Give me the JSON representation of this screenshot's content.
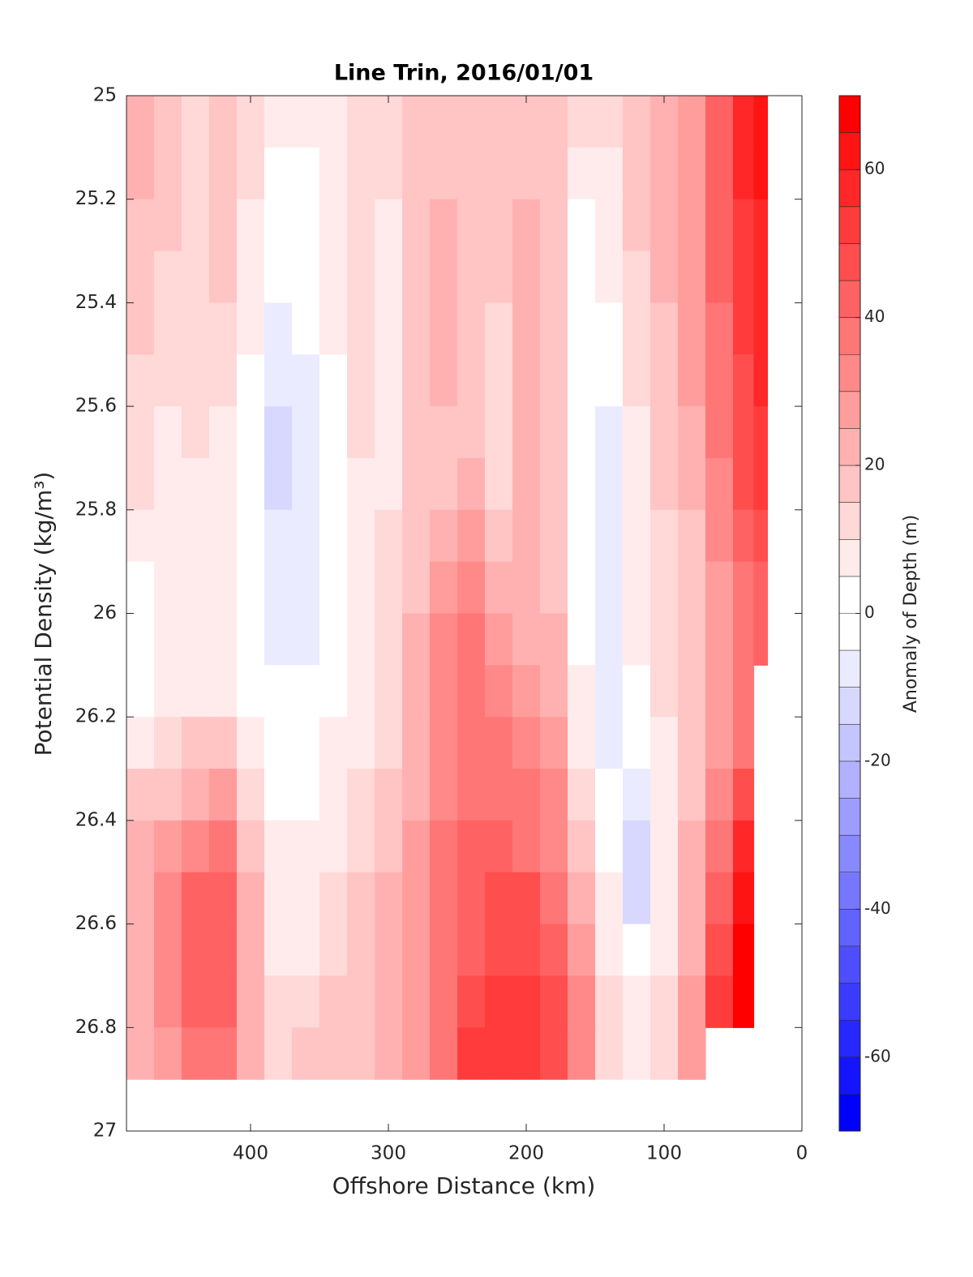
{
  "chart_data": {
    "type": "contourf",
    "title": "Line Trin, 2016/01/01",
    "xlabel": "Offshore Distance (km)",
    "ylabel": "Potential Density (kg/m³)",
    "colorbar_label": "Anomaly of Depth (m)",
    "xlim": [
      490,
      0
    ],
    "ylim": [
      25,
      27
    ],
    "xticks": [
      400,
      300,
      200,
      100,
      0
    ],
    "yticks": [
      25,
      25.2,
      25.4,
      25.6,
      25.8,
      26,
      26.2,
      26.4,
      26.6,
      26.8,
      27
    ],
    "clim": [
      -70,
      70
    ],
    "level_step": 5,
    "cticks": [
      -60,
      -40,
      -20,
      0,
      20,
      40,
      60
    ],
    "color_low": "#0000ff",
    "color_high": "#ff0000",
    "x": [
      480,
      460,
      440,
      420,
      400,
      380,
      360,
      340,
      320,
      300,
      280,
      260,
      240,
      220,
      200,
      180,
      160,
      140,
      120,
      100,
      80,
      60,
      40,
      30
    ],
    "y": [
      25.05,
      25.15,
      25.25,
      25.35,
      25.45,
      25.55,
      25.65,
      25.75,
      25.85,
      25.95,
      26.05,
      26.15,
      26.25,
      26.35,
      26.45,
      26.55,
      26.65,
      26.75,
      26.85
    ],
    "z": [
      [
        20,
        15,
        10,
        15,
        10,
        5,
        5,
        5,
        10,
        10,
        15,
        15,
        15,
        15,
        15,
        15,
        10,
        10,
        15,
        20,
        25,
        40,
        55,
        60
      ],
      [
        20,
        15,
        10,
        15,
        10,
        0,
        0,
        5,
        10,
        10,
        15,
        15,
        15,
        15,
        15,
        15,
        5,
        5,
        15,
        20,
        25,
        40,
        55,
        60
      ],
      [
        15,
        15,
        10,
        15,
        5,
        0,
        0,
        5,
        10,
        5,
        15,
        20,
        15,
        15,
        20,
        15,
        0,
        5,
        15,
        20,
        25,
        40,
        50,
        55
      ],
      [
        15,
        10,
        10,
        15,
        5,
        0,
        0,
        5,
        10,
        5,
        15,
        20,
        15,
        15,
        20,
        15,
        0,
        5,
        10,
        20,
        25,
        40,
        50,
        55
      ],
      [
        15,
        10,
        10,
        10,
        5,
        -5,
        0,
        5,
        10,
        5,
        15,
        20,
        15,
        10,
        20,
        15,
        0,
        0,
        10,
        15,
        25,
        35,
        50,
        55
      ],
      [
        10,
        10,
        10,
        10,
        0,
        -5,
        -5,
        0,
        10,
        5,
        15,
        20,
        15,
        10,
        20,
        15,
        0,
        0,
        10,
        15,
        25,
        35,
        45,
        55
      ],
      [
        10,
        5,
        10,
        5,
        0,
        -10,
        -5,
        0,
        10,
        5,
        15,
        15,
        15,
        10,
        20,
        15,
        0,
        -5,
        5,
        15,
        20,
        35,
        45,
        50
      ],
      [
        10,
        5,
        5,
        5,
        0,
        -10,
        -5,
        0,
        5,
        5,
        15,
        15,
        20,
        10,
        20,
        15,
        0,
        -5,
        5,
        15,
        20,
        30,
        45,
        50
      ],
      [
        5,
        5,
        5,
        5,
        0,
        -5,
        -5,
        0,
        5,
        10,
        15,
        20,
        25,
        15,
        20,
        15,
        0,
        -5,
        5,
        10,
        15,
        30,
        40,
        45
      ],
      [
        0,
        5,
        5,
        5,
        0,
        -5,
        -5,
        0,
        5,
        10,
        15,
        25,
        30,
        20,
        20,
        15,
        0,
        -5,
        5,
        10,
        15,
        25,
        35,
        40
      ],
      [
        0,
        5,
        5,
        5,
        0,
        -5,
        -5,
        0,
        5,
        10,
        20,
        30,
        35,
        25,
        20,
        20,
        0,
        -5,
        5,
        10,
        15,
        25,
        35,
        40
      ],
      [
        0,
        5,
        5,
        5,
        0,
        0,
        0,
        0,
        5,
        10,
        20,
        30,
        35,
        30,
        25,
        20,
        5,
        -5,
        0,
        10,
        15,
        25,
        35,
        null
      ],
      [
        5,
        10,
        15,
        15,
        5,
        0,
        0,
        5,
        5,
        10,
        20,
        30,
        35,
        35,
        30,
        25,
        5,
        -5,
        0,
        5,
        15,
        25,
        35,
        null
      ],
      [
        15,
        15,
        20,
        25,
        10,
        0,
        0,
        5,
        10,
        15,
        20,
        30,
        35,
        35,
        35,
        30,
        10,
        0,
        -5,
        5,
        15,
        30,
        45,
        null
      ],
      [
        20,
        25,
        30,
        35,
        15,
        5,
        5,
        5,
        10,
        15,
        25,
        35,
        40,
        40,
        35,
        30,
        15,
        0,
        -10,
        5,
        20,
        35,
        55,
        null
      ],
      [
        20,
        30,
        40,
        40,
        20,
        5,
        5,
        10,
        15,
        20,
        25,
        35,
        40,
        45,
        45,
        35,
        20,
        5,
        -10,
        5,
        20,
        40,
        60,
        null
      ],
      [
        20,
        30,
        40,
        40,
        20,
        5,
        5,
        10,
        15,
        20,
        25,
        35,
        40,
        45,
        45,
        40,
        25,
        5,
        0,
        5,
        20,
        45,
        65,
        null
      ],
      [
        20,
        30,
        40,
        40,
        20,
        10,
        10,
        15,
        15,
        20,
        25,
        35,
        45,
        50,
        50,
        45,
        30,
        10,
        5,
        10,
        25,
        50,
        65,
        null
      ],
      [
        20,
        25,
        35,
        35,
        20,
        10,
        15,
        15,
        15,
        20,
        25,
        35,
        50,
        50,
        50,
        45,
        30,
        10,
        5,
        10,
        25,
        null,
        null,
        null
      ]
    ]
  }
}
